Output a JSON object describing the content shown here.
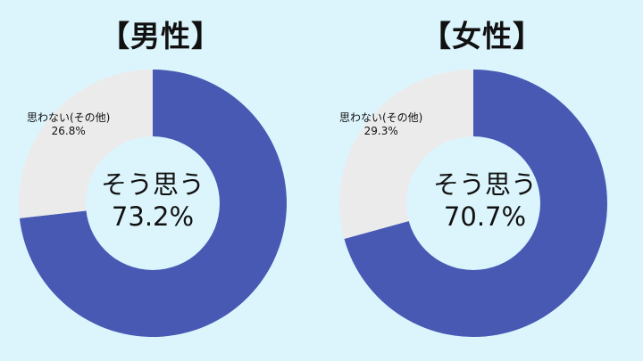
{
  "colors": {
    "agree": "#4759b3",
    "disagree": "#ebebeb",
    "background": "#dcf5fd",
    "hole": "#dcf5fd"
  },
  "chart_data": [
    {
      "type": "pie",
      "variant": "donut",
      "title": "【男性】",
      "categories": [
        "そう思う",
        "思わない(その他)"
      ],
      "values": [
        73.2,
        26.8
      ],
      "labels": [
        {
          "name": "そう思う",
          "value": "73.2%"
        },
        {
          "name": "思わない(その他)",
          "value": "26.8%"
        }
      ]
    },
    {
      "type": "pie",
      "variant": "donut",
      "title": "【女性】",
      "categories": [
        "そう思う",
        "思わない(その他)"
      ],
      "values": [
        70.7,
        29.3
      ],
      "labels": [
        {
          "name": "そう思う",
          "value": "70.7%"
        },
        {
          "name": "思わない(その他)",
          "value": "29.3%"
        }
      ]
    }
  ]
}
